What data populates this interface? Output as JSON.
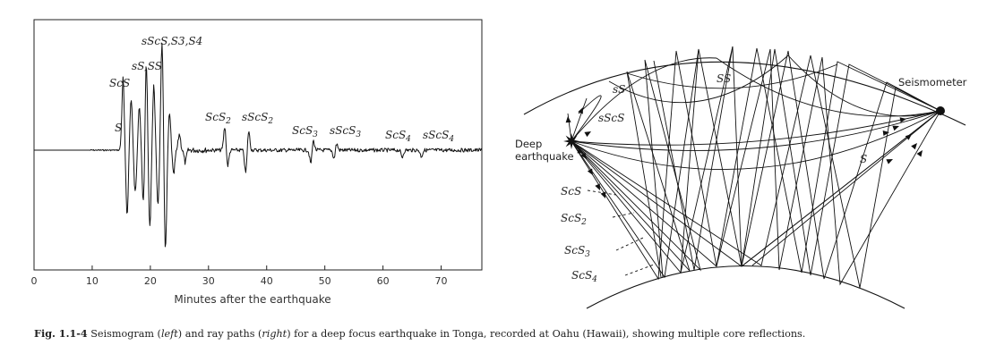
{
  "seismogram": {
    "xlabel": "Minutes after the earthquake",
    "ticks": [
      0,
      10,
      20,
      30,
      40,
      50,
      60,
      70
    ],
    "xmax": 77,
    "phases": [
      {
        "parts": [
          {
            "t": "S"
          }
        ]
      },
      {
        "parts": [
          {
            "t": "ScS"
          }
        ]
      },
      {
        "parts": [
          {
            "t": "sS,SS"
          }
        ]
      },
      {
        "parts": [
          {
            "t": "sScS,S3,S4"
          }
        ]
      },
      {
        "parts": [
          {
            "t": "ScS"
          },
          {
            "t": "2",
            "sub": true
          }
        ]
      },
      {
        "parts": [
          {
            "t": "sScS"
          },
          {
            "t": "2",
            "sub": true
          }
        ]
      },
      {
        "parts": [
          {
            "t": "ScS"
          },
          {
            "t": "3",
            "sub": true
          }
        ]
      },
      {
        "parts": [
          {
            "t": "sScS"
          },
          {
            "t": "3",
            "sub": true
          }
        ]
      },
      {
        "parts": [
          {
            "t": "ScS"
          },
          {
            "t": "4",
            "sub": true
          }
        ]
      },
      {
        "parts": [
          {
            "t": "sScS"
          },
          {
            "t": "4",
            "sub": true
          }
        ]
      }
    ]
  },
  "raypaths": {
    "seismometer": "Seismometer",
    "source_line1": "Deep",
    "source_line2": "earthquake",
    "labels": [
      {
        "parts": [
          {
            "t": "sS"
          }
        ]
      },
      {
        "parts": [
          {
            "t": "SS"
          }
        ]
      },
      {
        "parts": [
          {
            "t": "sScS"
          }
        ]
      },
      {
        "parts": [
          {
            "t": "S"
          }
        ]
      },
      {
        "parts": [
          {
            "t": "ScS"
          }
        ]
      },
      {
        "parts": [
          {
            "t": "ScS"
          },
          {
            "t": "2",
            "sub": true
          }
        ]
      },
      {
        "parts": [
          {
            "t": "ScS"
          },
          {
            "t": "3",
            "sub": true
          }
        ]
      },
      {
        "parts": [
          {
            "t": "ScS"
          },
          {
            "t": "4",
            "sub": true
          }
        ]
      }
    ]
  },
  "caption": {
    "label": "Fig. 1.1-4",
    "t1": "Seismogram (",
    "left": "left",
    "t2": ") and ray paths (",
    "right": "right",
    "t3": ") for a deep focus earthquake in Tonga, recorded at Oahu (Hawaii), showing multiple core reflections."
  }
}
